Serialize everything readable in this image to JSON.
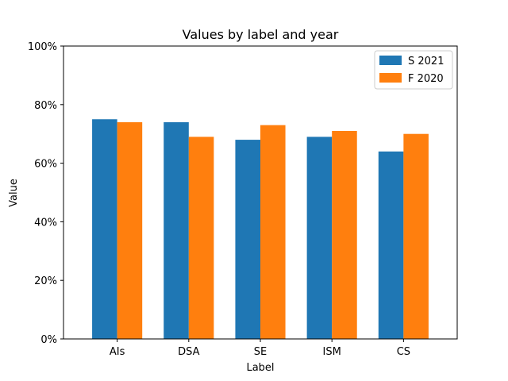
{
  "chart_data": {
    "type": "bar",
    "title": "Values by label and year",
    "xlabel": "Label",
    "ylabel": "Value",
    "categories": [
      "AIs",
      "DSA",
      "SE",
      "ISM",
      "CS"
    ],
    "series": [
      {
        "name": "S 2021",
        "color": "#1f77b4",
        "values": [
          75,
          74,
          68,
          69,
          64
        ]
      },
      {
        "name": "F 2020",
        "color": "#ff7f0e",
        "values": [
          74,
          69,
          73,
          71,
          70
        ]
      }
    ],
    "ylim": [
      0,
      100
    ],
    "yticks": [
      0,
      20,
      40,
      60,
      80,
      100
    ],
    "ytick_labels": [
      "0%",
      "20%",
      "40%",
      "60%",
      "80%",
      "100%"
    ],
    "grid": false,
    "legend": "top-right"
  }
}
